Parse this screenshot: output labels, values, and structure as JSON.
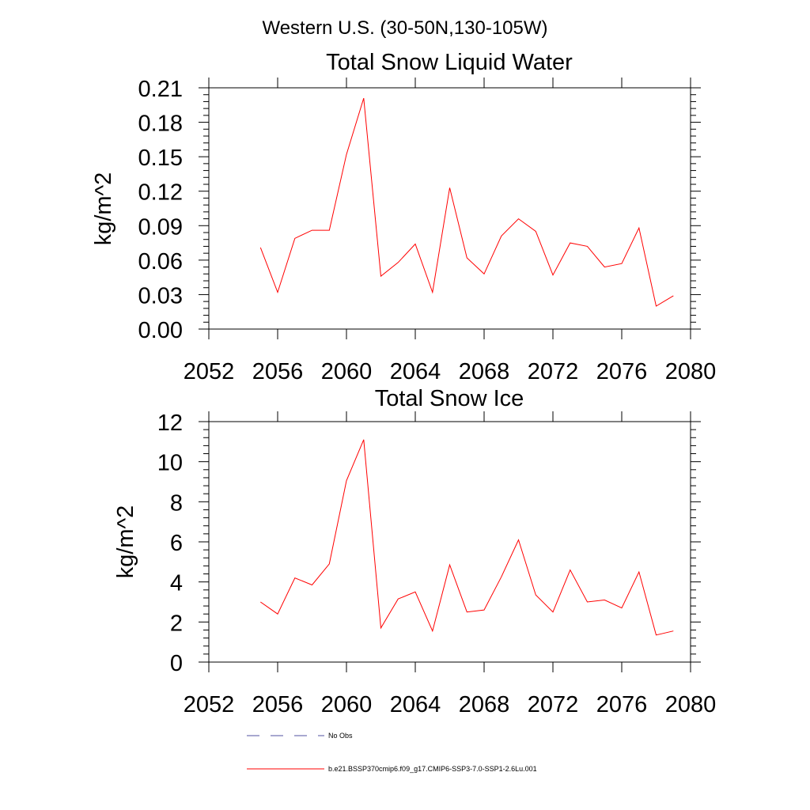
{
  "suptitle": "Western U.S. (30-50N,130-105W)",
  "chart_data": [
    {
      "type": "line",
      "title": "Total Snow Liquid Water",
      "ylabel": "kg/m^2",
      "xlabel": "",
      "xlim": [
        2052,
        2080
      ],
      "ylim": [
        0,
        0.21
      ],
      "x_ticks": [
        "2052",
        "2056",
        "2060",
        "2064",
        "2068",
        "2072",
        "2076",
        "2080"
      ],
      "y_ticks": [
        "0.00",
        "0.03",
        "0.06",
        "0.09",
        "0.12",
        "0.15",
        "0.18",
        "0.21"
      ],
      "x": [
        2055,
        2056,
        2057,
        2058,
        2059,
        2060,
        2061,
        2062,
        2063,
        2064,
        2065,
        2066,
        2067,
        2068,
        2069,
        2070,
        2071,
        2072,
        2073,
        2074,
        2075,
        2076,
        2077,
        2078,
        2079
      ],
      "series": [
        {
          "name": "b.e21.BSSP370cmip6.f09_g17.CMIP6-SSP3-7.0-SSP1-2.6Lu.001",
          "color": "#ff0000",
          "values": [
            0.071,
            0.032,
            0.079,
            0.086,
            0.086,
            0.152,
            0.201,
            0.046,
            0.058,
            0.074,
            0.032,
            0.123,
            0.062,
            0.048,
            0.081,
            0.096,
            0.085,
            0.047,
            0.075,
            0.072,
            0.054,
            0.057,
            0.088,
            0.02,
            0.029
          ]
        }
      ]
    },
    {
      "type": "line",
      "title": "Total Snow Ice",
      "ylabel": "kg/m^2",
      "xlabel": "",
      "xlim": [
        2052,
        2080
      ],
      "ylim": [
        0,
        12
      ],
      "x_ticks": [
        "2052",
        "2056",
        "2060",
        "2064",
        "2068",
        "2072",
        "2076",
        "2080"
      ],
      "y_ticks": [
        "0",
        "2",
        "4",
        "6",
        "8",
        "10",
        "12"
      ],
      "x": [
        2055,
        2056,
        2057,
        2058,
        2059,
        2060,
        2061,
        2062,
        2063,
        2064,
        2065,
        2066,
        2067,
        2068,
        2069,
        2070,
        2071,
        2072,
        2073,
        2074,
        2075,
        2076,
        2077,
        2078,
        2079
      ],
      "series": [
        {
          "name": "b.e21.BSSP370cmip6.f09_g17.CMIP6-SSP3-7.0-SSP1-2.6Lu.001",
          "color": "#ff0000",
          "values": [
            3.0,
            2.4,
            4.2,
            3.85,
            4.9,
            9.05,
            11.1,
            1.7,
            3.15,
            3.5,
            1.55,
            4.85,
            2.5,
            2.6,
            4.25,
            6.1,
            3.35,
            2.5,
            4.6,
            3.0,
            3.1,
            2.7,
            4.5,
            1.35,
            1.55
          ]
        }
      ]
    }
  ],
  "legend": {
    "placement": "bottom",
    "items": [
      {
        "label": "No Obs",
        "color": "#5050a0",
        "dash": "dashed"
      },
      {
        "label": "b.e21.BSSP370cmip6.f09_g17.CMIP6-SSP3-7.0-SSP1-2.6Lu.001",
        "color": "#ff0000",
        "dash": "solid"
      }
    ]
  }
}
